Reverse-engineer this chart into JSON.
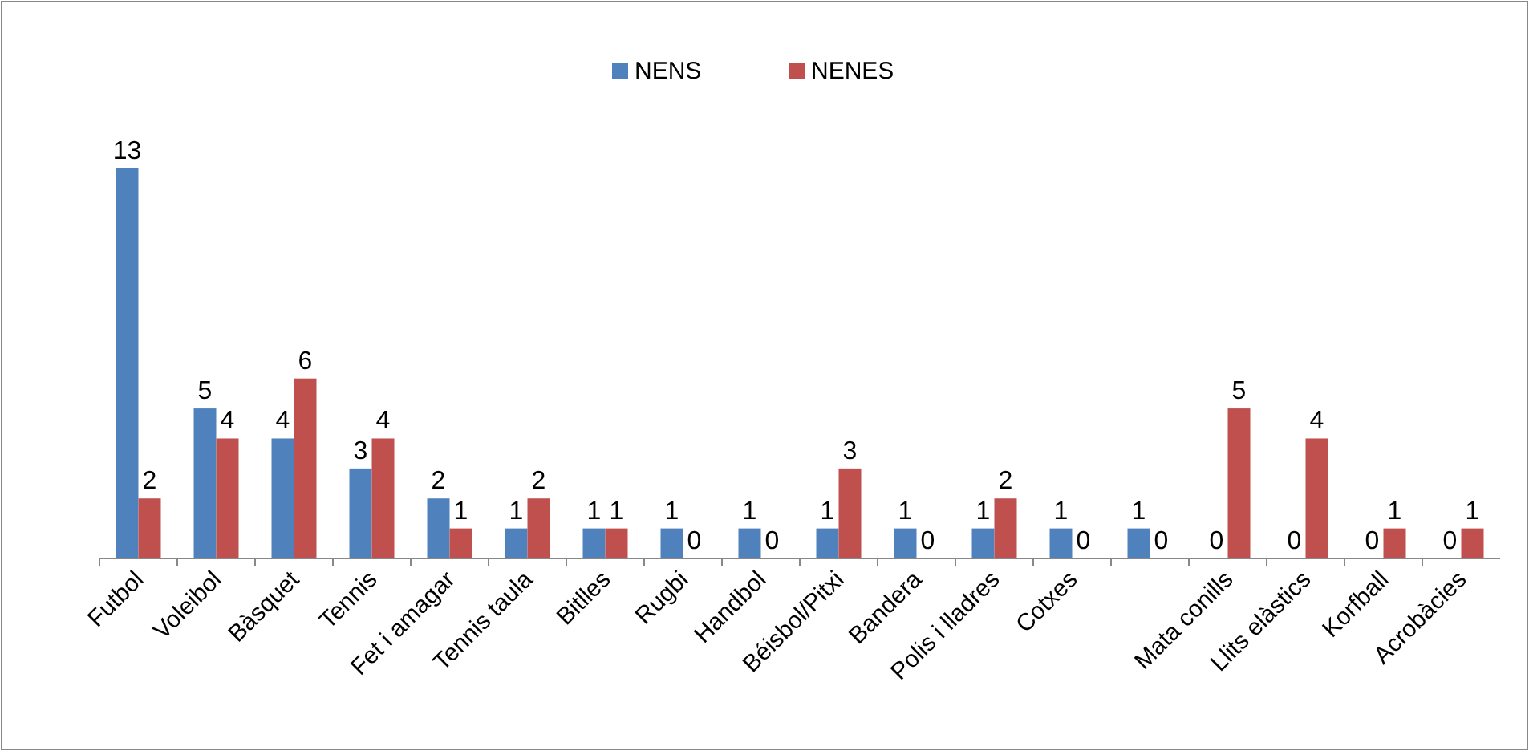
{
  "chart_data": {
    "type": "bar",
    "categories": [
      "Futbol",
      "Voleibol",
      "Bàsquet",
      "Tennis",
      "Fet i amagar",
      "Tennis taula",
      "Bitlles",
      "Rugbi",
      "Handbol",
      "Béisbol/Pitxi",
      "Bandera",
      "Polis i lladres",
      "Cotxes",
      null,
      "Mata conills",
      "Llits elàstics",
      "Korfball",
      "Acrobàcies"
    ],
    "series": [
      {
        "name": "NENS",
        "color": "#4f81bd",
        "values": [
          13,
          5,
          4,
          3,
          2,
          1,
          1,
          1,
          1,
          1,
          1,
          1,
          1,
          1,
          0,
          0,
          0,
          0
        ]
      },
      {
        "name": "NENES",
        "color": "#c0504d",
        "values": [
          2,
          4,
          6,
          4,
          1,
          2,
          1,
          0,
          0,
          3,
          0,
          2,
          0,
          0,
          5,
          4,
          1,
          1
        ]
      }
    ],
    "data_labels": true,
    "legend": "top",
    "tick_labels": "x"
  }
}
